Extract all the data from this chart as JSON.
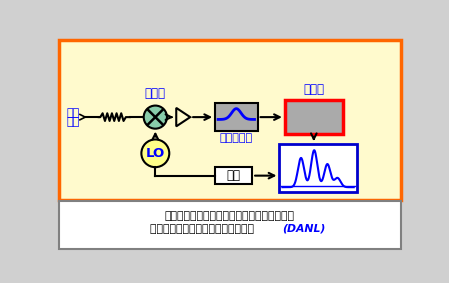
{
  "bg_main": "#FFFACD",
  "border_orange": "#FF6600",
  "border_gray": "#808080",
  "caption_bg": "#FFFFFF",
  "caption_line1": "频谱仪内部混频器及各级放大器会产生噪声，",
  "caption_line2": "通过检波器会反映为显示白噪声电平 ",
  "caption_danl": "(DANL)",
  "label_input1": "输入",
  "label_input2": "信号",
  "label_mixer": "混频器",
  "label_if": "中频滤波器",
  "label_det": "检波器",
  "label_lo": "LO",
  "label_scan": "扫描",
  "blue": "#0000FF",
  "blue_dark": "#0000CC",
  "red": "#FF0000",
  "black": "#000000",
  "gray_fill": "#AAAAAA",
  "mixer_fill": "#88CCAA",
  "lo_fill": "#FFFF88",
  "white": "#FFFFFF",
  "fig_bg": "#D0D0D0",
  "figw": 4.49,
  "figh": 2.83,
  "dpi": 100
}
